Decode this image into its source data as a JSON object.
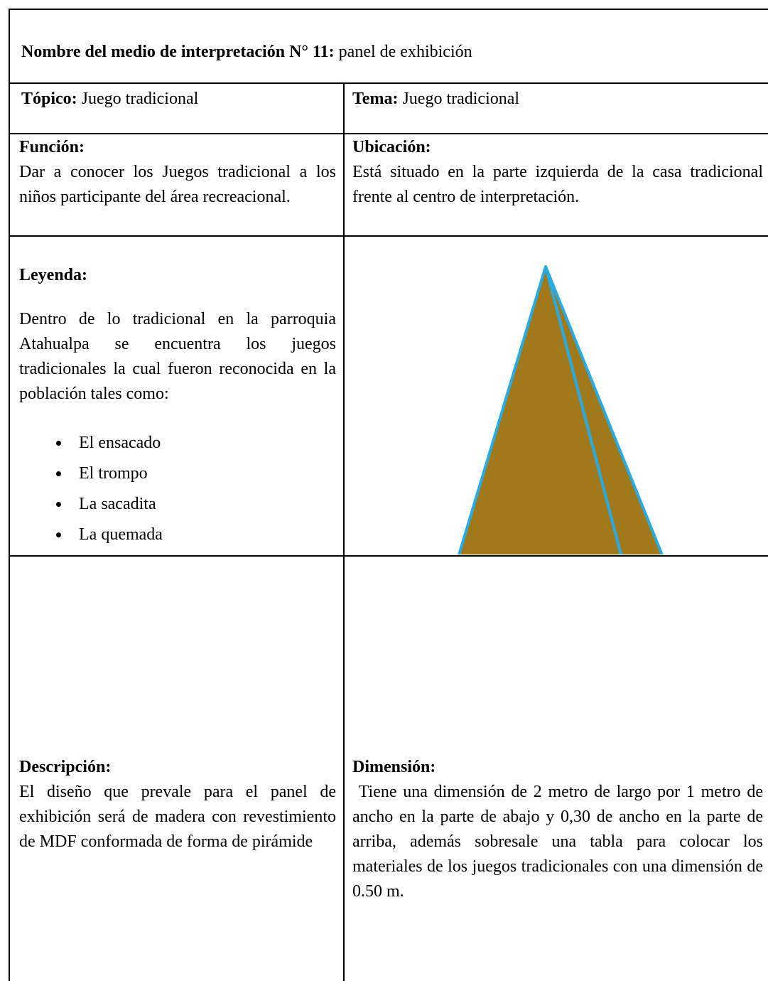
{
  "header": {
    "label": "Nombre del medio de interpretación N° 11:",
    "text": " panel de exhibición"
  },
  "topico": {
    "label": "Tópico:",
    "text": " Juego tradicional"
  },
  "tema": {
    "label": "Tema:",
    "text": " Juego tradicional"
  },
  "funcion": {
    "label": "Función:",
    "text": "Dar a conocer los Juegos tradicional a los niños participante del área recreacional."
  },
  "ubicacion": {
    "label": "Ubicación:",
    "text": "Está situado en la parte izquierda de la casa tradicional frente al centro de interpretación."
  },
  "leyenda": {
    "label": "Leyenda:",
    "text": "Dentro de lo tradicional en la parroquia Atahualpa se encuentra los juegos tradicionales la cual fueron reconocida en la población tales como:",
    "items": [
      "El ensacado",
      "El trompo",
      "La sacadita",
      "La quemada"
    ]
  },
  "descripcion": {
    "label": "Descripción:",
    "text": "El diseño que prevale para el panel de exhibición será de madera con revestimiento de MDF conformada de forma de pirámide"
  },
  "dimension": {
    "label": "Dimensión:",
    "text": " Tiene una dimensión de 2 metro de largo por 1 metro de ancho en la parte de abajo y 0,30 de ancho en la parte de arriba, además sobresale una tabla para colocar los materiales de los juegos tradicionales con una dimensión de 0.50 m."
  }
}
